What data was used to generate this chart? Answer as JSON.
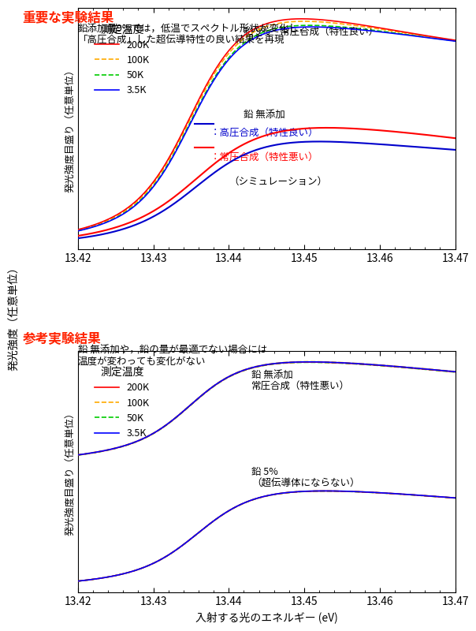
{
  "title1": "重要な実験結果",
  "subtitle1_line1": "鉛添加量9%では，低温でスペクトル形状が変化し，",
  "subtitle1_line2": "「高圧合成」した超伝導特性の良い結果を再現",
  "title2": "参考実験結果",
  "subtitle2_line1": "鉛 無添加や，鉛の量が最適でない場合には",
  "subtitle2_line2": "温度が変わっても変化がない",
  "xlabel": "入射する光のエネルギー (eV)",
  "ylabel": "発光強度（任意単位）",
  "ylabel2": "発光強度（任意単位）",
  "ylabel_inner": "発光強度目盛り（任意単位）",
  "xmin": 13.42,
  "xmax": 13.47,
  "xticks": [
    13.42,
    13.43,
    13.44,
    13.45,
    13.46,
    13.47
  ],
  "legend_title": "測定温度",
  "legend_entries": [
    "200K",
    "100K",
    "50K",
    "3.5K"
  ],
  "colors": {
    "200K": "#ff0000",
    "100K": "#ffaa00",
    "50K": "#00cc00",
    "35K": "#0000ff",
    "blue_sim": "#0000cc",
    "red_sim": "#ff0000",
    "title_red": "#ff2200"
  },
  "annotation1": "鉛 9%　常圧合成（特性良い）",
  "annotation2_title": "鉛 無添加",
  "annotation2_blue": "：高圧合成（特性良い）",
  "annotation2_red": "：常圧合成（特性悪い）",
  "annotation2_sim": "（シミュレーション）",
  "annotation3": "鉛 無添加\n常圧合成（特性悪い）",
  "annotation4": "鉛 5%\n（超伝導体にならない）"
}
